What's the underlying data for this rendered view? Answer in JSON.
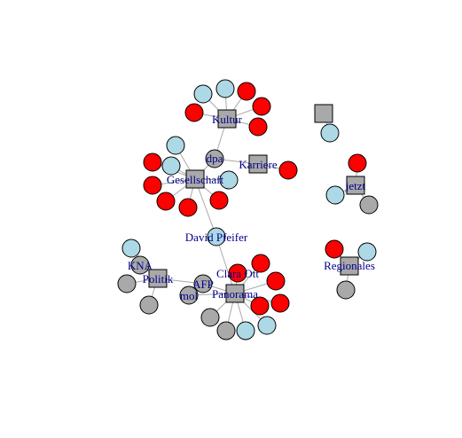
{
  "colors": {
    "background": "#ffffff",
    "edge": "#a9a9a9",
    "node_stroke": "#000000",
    "label": "#00008b",
    "red": "#ff0000",
    "blue": "#add8e6",
    "gray": "#a9a9a9",
    "square": "#a9a9a9"
  },
  "nodes": [
    {
      "id": "kultur_sq",
      "shape": "square",
      "color": "square",
      "label": "Kultur"
    },
    {
      "id": "k1",
      "shape": "circle",
      "color": "blue",
      "label": ""
    },
    {
      "id": "k2",
      "shape": "circle",
      "color": "blue",
      "label": ""
    },
    {
      "id": "k3",
      "shape": "circle",
      "color": "red",
      "label": ""
    },
    {
      "id": "k4",
      "shape": "circle",
      "color": "red",
      "label": ""
    },
    {
      "id": "k5",
      "shape": "circle",
      "color": "red",
      "label": ""
    },
    {
      "id": "k6",
      "shape": "circle",
      "color": "red",
      "label": ""
    },
    {
      "id": "dpa",
      "shape": "circle",
      "color": "gray",
      "label": "dpa"
    },
    {
      "id": "karriere_sq",
      "shape": "square",
      "color": "square",
      "label": "Karriere"
    },
    {
      "id": "kr1",
      "shape": "circle",
      "color": "red",
      "label": ""
    },
    {
      "id": "gesell_sq",
      "shape": "square",
      "color": "square",
      "label": "Gesellschaft"
    },
    {
      "id": "g1",
      "shape": "circle",
      "color": "blue",
      "label": ""
    },
    {
      "id": "g2",
      "shape": "circle",
      "color": "blue",
      "label": ""
    },
    {
      "id": "g3",
      "shape": "circle",
      "color": "red",
      "label": ""
    },
    {
      "id": "g4",
      "shape": "circle",
      "color": "red",
      "label": ""
    },
    {
      "id": "g5",
      "shape": "circle",
      "color": "red",
      "label": ""
    },
    {
      "id": "g6",
      "shape": "circle",
      "color": "red",
      "label": ""
    },
    {
      "id": "g7",
      "shape": "circle",
      "color": "red",
      "label": ""
    },
    {
      "id": "g8",
      "shape": "circle",
      "color": "blue",
      "label": ""
    },
    {
      "id": "david",
      "shape": "circle",
      "color": "blue",
      "label": "David Pfeifer"
    },
    {
      "id": "lone_sq",
      "shape": "square",
      "color": "square",
      "label": ""
    },
    {
      "id": "lone_c",
      "shape": "circle",
      "color": "blue",
      "label": ""
    },
    {
      "id": "jetzt_sq",
      "shape": "square",
      "color": "square",
      "label": "jetzt"
    },
    {
      "id": "j1",
      "shape": "circle",
      "color": "red",
      "label": ""
    },
    {
      "id": "j2",
      "shape": "circle",
      "color": "blue",
      "label": ""
    },
    {
      "id": "j3",
      "shape": "circle",
      "color": "gray",
      "label": ""
    },
    {
      "id": "reg_sq",
      "shape": "square",
      "color": "square",
      "label": "Regionales"
    },
    {
      "id": "r1",
      "shape": "circle",
      "color": "red",
      "label": ""
    },
    {
      "id": "r2",
      "shape": "circle",
      "color": "blue",
      "label": ""
    },
    {
      "id": "r3",
      "shape": "circle",
      "color": "gray",
      "label": ""
    },
    {
      "id": "politik_sq",
      "shape": "square",
      "color": "square",
      "label": "Politik"
    },
    {
      "id": "kna",
      "shape": "circle",
      "color": "gray",
      "label": "KNA"
    },
    {
      "id": "p1",
      "shape": "circle",
      "color": "blue",
      "label": ""
    },
    {
      "id": "p2",
      "shape": "circle",
      "color": "gray",
      "label": ""
    },
    {
      "id": "p3",
      "shape": "circle",
      "color": "gray",
      "label": ""
    },
    {
      "id": "afp",
      "shape": "circle",
      "color": "gray",
      "label": "AFP"
    },
    {
      "id": "mol",
      "shape": "circle",
      "color": "gray",
      "label": "mol"
    },
    {
      "id": "panorama_sq",
      "shape": "square",
      "color": "square",
      "label": "Panorama"
    },
    {
      "id": "clara",
      "shape": "circle",
      "color": "red",
      "label": "Clara Ott"
    },
    {
      "id": "pn1",
      "shape": "circle",
      "color": "red",
      "label": ""
    },
    {
      "id": "pn2",
      "shape": "circle",
      "color": "red",
      "label": ""
    },
    {
      "id": "pn3",
      "shape": "circle",
      "color": "red",
      "label": ""
    },
    {
      "id": "pn4",
      "shape": "circle",
      "color": "red",
      "label": ""
    },
    {
      "id": "pn5",
      "shape": "circle",
      "color": "blue",
      "label": ""
    },
    {
      "id": "pn6",
      "shape": "circle",
      "color": "blue",
      "label": ""
    },
    {
      "id": "pn7",
      "shape": "circle",
      "color": "gray",
      "label": ""
    },
    {
      "id": "pn8",
      "shape": "circle",
      "color": "gray",
      "label": ""
    }
  ],
  "edges": [
    [
      "kultur_sq",
      "k1"
    ],
    [
      "kultur_sq",
      "k2"
    ],
    [
      "kultur_sq",
      "k3"
    ],
    [
      "kultur_sq",
      "k4"
    ],
    [
      "kultur_sq",
      "k5"
    ],
    [
      "kultur_sq",
      "k6"
    ],
    [
      "kultur_sq",
      "dpa"
    ],
    [
      "dpa",
      "karriere_sq"
    ],
    [
      "karriere_sq",
      "kr1"
    ],
    [
      "dpa",
      "gesell_sq"
    ],
    [
      "gesell_sq",
      "g1"
    ],
    [
      "gesell_sq",
      "g2"
    ],
    [
      "gesell_sq",
      "g3"
    ],
    [
      "gesell_sq",
      "g4"
    ],
    [
      "gesell_sq",
      "g5"
    ],
    [
      "gesell_sq",
      "g6"
    ],
    [
      "gesell_sq",
      "g7"
    ],
    [
      "gesell_sq",
      "g8"
    ],
    [
      "gesell_sq",
      "david"
    ],
    [
      "david",
      "panorama_sq"
    ],
    [
      "lone_sq",
      "lone_c"
    ],
    [
      "jetzt_sq",
      "j1"
    ],
    [
      "jetzt_sq",
      "j2"
    ],
    [
      "jetzt_sq",
      "j3"
    ],
    [
      "reg_sq",
      "r1"
    ],
    [
      "reg_sq",
      "r2"
    ],
    [
      "reg_sq",
      "r3"
    ],
    [
      "politik_sq",
      "kna"
    ],
    [
      "politik_sq",
      "p1"
    ],
    [
      "politik_sq",
      "p2"
    ],
    [
      "politik_sq",
      "p3"
    ],
    [
      "politik_sq",
      "afp"
    ],
    [
      "afp",
      "panorama_sq"
    ],
    [
      "mol",
      "panorama_sq"
    ],
    [
      "panorama_sq",
      "clara"
    ],
    [
      "panorama_sq",
      "pn1"
    ],
    [
      "panorama_sq",
      "pn2"
    ],
    [
      "panorama_sq",
      "pn3"
    ],
    [
      "panorama_sq",
      "pn4"
    ],
    [
      "panorama_sq",
      "pn5"
    ],
    [
      "panorama_sq",
      "pn6"
    ],
    [
      "panorama_sq",
      "pn7"
    ],
    [
      "panorama_sq",
      "pn8"
    ]
  ]
}
